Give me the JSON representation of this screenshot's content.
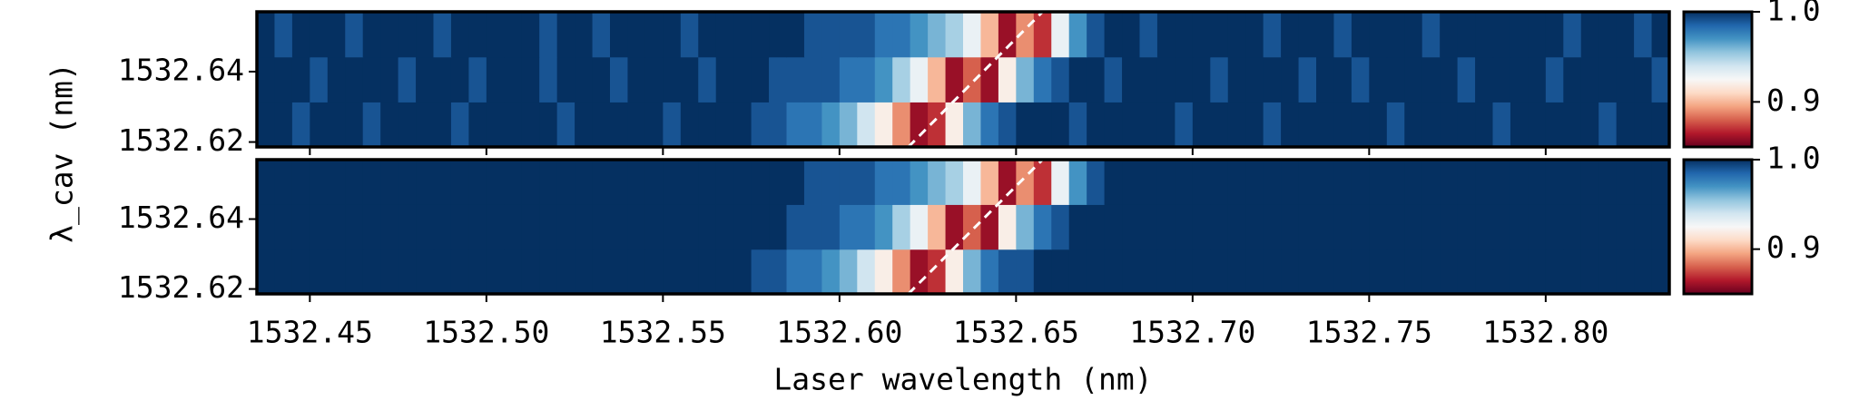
{
  "chart_data": [
    {
      "type": "heatmap",
      "ylabel": "λ_cav (nm)",
      "xlim": [
        1532.435,
        1532.835
      ],
      "ylim": [
        1532.6186,
        1532.657
      ],
      "yticks": [
        1532.62,
        1532.64
      ],
      "z": [
        [
          1,
          1,
          0.99,
          1,
          1,
          1,
          0.99,
          1,
          1,
          1,
          1,
          0.99,
          1,
          1,
          1,
          1,
          1,
          0.99,
          1,
          1,
          1,
          1,
          1,
          0.99,
          1,
          1,
          1,
          1,
          0.99,
          0.99,
          0.98,
          0.98,
          0.97,
          0.96,
          0.94,
          0.92,
          0.89,
          0.86,
          0.87,
          0.92,
          0.96,
          0.98,
          0.99,
          1,
          1,
          1,
          0.99,
          1,
          1,
          1,
          1,
          1,
          0.99,
          1,
          1,
          1,
          1,
          0.99,
          1,
          1,
          1,
          1,
          1,
          1,
          0.99,
          1,
          1,
          1,
          1,
          1,
          0.99,
          1,
          1,
          1,
          1,
          1,
          0.99,
          1,
          1,
          1
        ],
        [
          1,
          1,
          1,
          0.99,
          1,
          1,
          1,
          1,
          0.99,
          1,
          1,
          1,
          0.99,
          1,
          1,
          1,
          0.99,
          1,
          1,
          1,
          0.99,
          1,
          1,
          1,
          1,
          0.99,
          1,
          1,
          1,
          0.99,
          0.99,
          0.99,
          0.99,
          0.98,
          0.98,
          0.97,
          0.95,
          0.93,
          0.9,
          0.86,
          0.88,
          0.86,
          0.92,
          0.96,
          0.98,
          0.99,
          1,
          1,
          0.99,
          1,
          1,
          1,
          1,
          1,
          0.99,
          1,
          1,
          1,
          1,
          0.99,
          1,
          1,
          0.99,
          1,
          1,
          1,
          1,
          1,
          0.99,
          1,
          1,
          1,
          1,
          0.99,
          1,
          1,
          1,
          1,
          1,
          0.99
        ],
        [
          1,
          0.99,
          1,
          1,
          1,
          0.99,
          1,
          1,
          1,
          1,
          0.99,
          1,
          1,
          1,
          1,
          1,
          0.99,
          1,
          1,
          0.99,
          1,
          1,
          1,
          1,
          0.99,
          1,
          1,
          1,
          1,
          1,
          1,
          0.99,
          0.99,
          0.99,
          0.99,
          0.98,
          0.98,
          0.97,
          0.96,
          0.95,
          0.93,
          0.9,
          0.86,
          0.89,
          0.87,
          0.93,
          0.97,
          0.99,
          1,
          1,
          0.99,
          1,
          1,
          1,
          1,
          1,
          1,
          0.99,
          1,
          1,
          1,
          0.99,
          1,
          1,
          1,
          1,
          0.99,
          1,
          1,
          1,
          1,
          1,
          1,
          1,
          0.99,
          1,
          1,
          1,
          0.99,
          1
        ]
      ],
      "colormap": [
        "#67001f",
        "#b2182b",
        "#d6604d",
        "#f4a582",
        "#fddbc7",
        "#f7f7f7",
        "#d1e5f0",
        "#92c5de",
        "#4393c3",
        "#2166ac",
        "#053061"
      ],
      "lines": [
        {
          "x": [
            1532.6195,
            1532.6575
          ],
          "values": [
            1532.6186,
            1532.657
          ],
          "color": "#ffffff"
        }
      ],
      "colorbar": {
        "lim": [
          0.85,
          1.0
        ],
        "ticks": [
          0.9,
          {
            "value": 1,
            "label": "1.0"
          }
        ]
      }
    },
    {
      "type": "heatmap",
      "xlabel": "Laser wavelength (nm)",
      "xlim": [
        1532.435,
        1532.835
      ],
      "ylim": [
        1532.6186,
        1532.657
      ],
      "yticks": [
        1532.62,
        1532.64
      ],
      "xticks": [
        1532.45,
        {
          "value": 1532.5,
          "label": "1532.50"
        },
        1532.55,
        {
          "value": 1532.6,
          "label": "1532.60"
        },
        1532.65,
        {
          "value": 1532.7,
          "label": "1532.70"
        },
        1532.75,
        {
          "value": 1532.8,
          "label": "1532.80"
        }
      ],
      "z": [
        [
          1,
          1,
          1,
          1,
          1,
          1,
          1,
          1,
          1,
          1,
          1,
          1,
          1,
          1,
          1,
          1,
          1,
          1,
          1,
          1,
          1,
          1,
          1,
          1,
          1,
          1,
          1,
          1,
          0.99,
          0.99,
          0.98,
          0.98,
          0.97,
          0.96,
          0.94,
          0.92,
          0.89,
          0.86,
          0.87,
          0.92,
          0.96,
          0.98,
          0.99,
          0.99,
          1,
          1,
          1,
          1,
          1,
          1,
          1,
          1,
          1,
          1,
          1,
          1,
          1,
          1,
          1,
          1,
          1,
          1,
          1,
          1,
          1,
          1,
          1,
          1,
          1,
          1,
          1,
          1,
          1,
          1,
          1,
          1,
          1,
          1,
          1,
          1
        ],
        [
          1,
          1,
          1,
          1,
          1,
          1,
          1,
          1,
          1,
          1,
          1,
          1,
          1,
          1,
          1,
          1,
          1,
          1,
          1,
          1,
          1,
          1,
          1,
          1,
          1,
          1,
          1,
          1,
          1,
          1,
          0.99,
          0.99,
          0.99,
          0.98,
          0.98,
          0.97,
          0.95,
          0.93,
          0.9,
          0.86,
          0.88,
          0.86,
          0.92,
          0.96,
          0.98,
          0.99,
          1,
          1,
          1,
          1,
          1,
          1,
          1,
          1,
          1,
          1,
          1,
          1,
          1,
          1,
          1,
          1,
          1,
          1,
          1,
          1,
          1,
          1,
          1,
          1,
          1,
          1,
          1,
          1,
          1,
          1,
          1,
          1,
          1,
          1
        ],
        [
          1,
          1,
          1,
          1,
          1,
          1,
          1,
          1,
          1,
          1,
          1,
          1,
          1,
          1,
          1,
          1,
          1,
          1,
          1,
          1,
          1,
          1,
          1,
          1,
          1,
          1,
          1,
          1,
          1,
          1,
          1,
          0.99,
          0.99,
          0.99,
          0.99,
          0.98,
          0.98,
          0.97,
          0.96,
          0.95,
          0.93,
          0.9,
          0.86,
          0.89,
          0.87,
          0.93,
          0.97,
          0.99,
          1,
          1,
          1,
          1,
          1,
          1,
          1,
          1,
          1,
          1,
          1,
          1,
          1,
          1,
          1,
          1,
          1,
          1,
          1,
          1,
          1,
          1,
          1,
          1,
          1,
          1,
          1,
          1,
          1,
          1,
          1,
          1
        ]
      ],
      "colormap": [
        "#67001f",
        "#b2182b",
        "#d6604d",
        "#f4a582",
        "#fddbc7",
        "#f7f7f7",
        "#d1e5f0",
        "#92c5de",
        "#4393c3",
        "#2166ac",
        "#053061"
      ],
      "lines": [
        {
          "x": [
            1532.6195,
            1532.6575
          ],
          "values": [
            1532.6186,
            1532.657
          ],
          "color": "#ffffff"
        }
      ],
      "colorbar": {
        "lim": [
          0.85,
          1.0
        ],
        "ticks": [
          0.9,
          {
            "value": 1,
            "label": "1.0"
          }
        ]
      }
    }
  ]
}
